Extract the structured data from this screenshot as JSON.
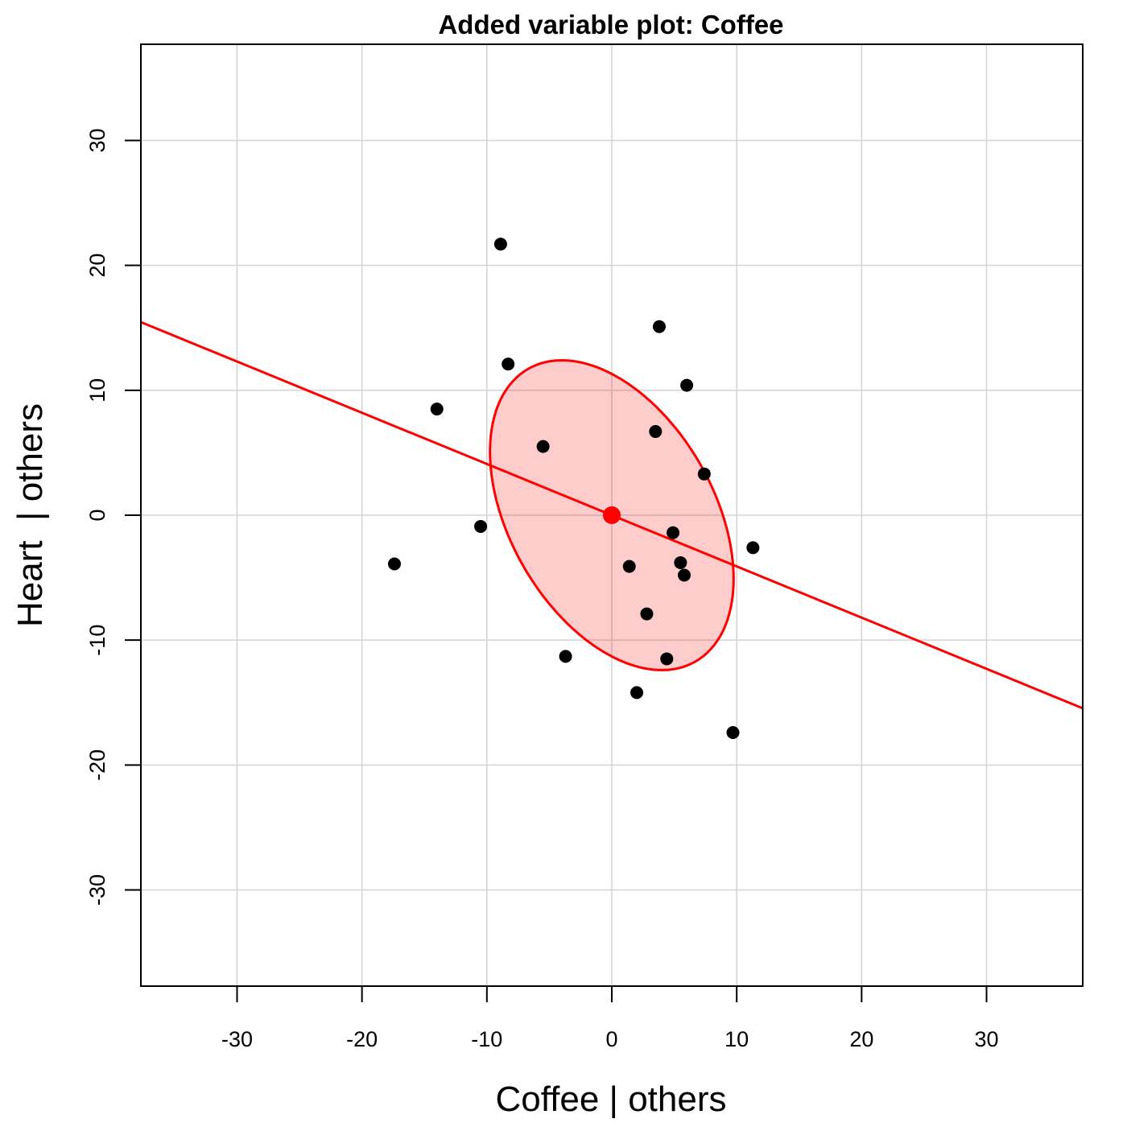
{
  "chart_data": {
    "type": "scatter",
    "title": "Added variable plot: Coffee",
    "xlabel": "Coffee | others",
    "ylabel": "Heart  | others",
    "xlim": [
      -37.7,
      37.7
    ],
    "ylim": [
      -37.7,
      37.7
    ],
    "xticks": [
      -30,
      -20,
      -10,
      0,
      10,
      20,
      30
    ],
    "yticks": [
      -30,
      -20,
      -10,
      0,
      10,
      20,
      30
    ],
    "xtick_labels": [
      "-30",
      "-20",
      "-10",
      "0",
      "10",
      "20",
      "30"
    ],
    "ytick_labels": [
      "-30",
      "-20",
      "-10",
      "0",
      "10",
      "20",
      "30"
    ],
    "grid": true,
    "points": [
      {
        "x": -8.9,
        "y": 21.7
      },
      {
        "x": 3.8,
        "y": 15.1
      },
      {
        "x": -8.3,
        "y": 12.1
      },
      {
        "x": 6.0,
        "y": 10.4
      },
      {
        "x": -14.0,
        "y": 8.5
      },
      {
        "x": 3.5,
        "y": 6.7
      },
      {
        "x": -5.5,
        "y": 5.5
      },
      {
        "x": 7.4,
        "y": 3.3
      },
      {
        "x": -10.5,
        "y": -0.9
      },
      {
        "x": 4.9,
        "y": -1.4
      },
      {
        "x": 11.3,
        "y": -2.6
      },
      {
        "x": -17.4,
        "y": -3.9
      },
      {
        "x": 5.5,
        "y": -3.8
      },
      {
        "x": 1.4,
        "y": -4.1
      },
      {
        "x": 5.8,
        "y": -4.8
      },
      {
        "x": 2.8,
        "y": -7.9
      },
      {
        "x": -3.7,
        "y": -11.3
      },
      {
        "x": 4.4,
        "y": -11.5
      },
      {
        "x": 2.0,
        "y": -14.2
      },
      {
        "x": 9.7,
        "y": -17.4
      }
    ],
    "centroid": {
      "x": 0,
      "y": 0
    },
    "regression_line": {
      "slope": -0.41,
      "intercept": 0
    },
    "data_ellipse": {
      "center": [
        0,
        0
      ],
      "x_half_range": 9.75,
      "y_half_range": 12.4,
      "corr": -0.41
    },
    "colors": {
      "point": "#000000",
      "line": "#ff0000",
      "ellipse_fill": "#ff000033",
      "ellipse_stroke": "#ff0000",
      "centroid": "#ff0000",
      "grid": "#d3d3d3",
      "frame": "#000000"
    }
  }
}
